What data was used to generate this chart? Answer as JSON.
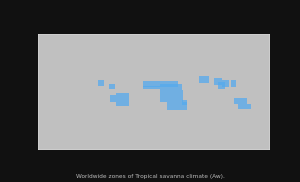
{
  "background_color": "#111111",
  "ocean_color": "#111111",
  "land_color": "#c0c0c0",
  "border_color": "#ffffff",
  "highlight_color": "#55aaee",
  "legend_bar_bg": "#444444",
  "legend_square_color": "#5599ee",
  "caption": "Worldwide zones of Tropical savanna climate (Aw).",
  "caption_color": "#bbbbbb",
  "caption_fontsize": 4.2,
  "figsize": [
    3.0,
    1.82
  ],
  "dpi": 100,
  "highlight_regions": [
    {
      "lon0": -17,
      "lon1": 38,
      "lat0": 8,
      "lat1": 17
    },
    {
      "lon0": -17,
      "lon1": 10,
      "lat0": 4,
      "lat1": 9
    },
    {
      "lon0": 10,
      "lon1": 43,
      "lat0": 3,
      "lat1": 12
    },
    {
      "lon0": 10,
      "lon1": 45,
      "lat0": -15,
      "lat1": 3
    },
    {
      "lon0": 20,
      "lon1": 52,
      "lat0": -28,
      "lat1": -15
    },
    {
      "lon0": 43,
      "lon1": 51,
      "lat0": -20,
      "lat1": -12
    },
    {
      "lon0": -58,
      "lon1": -38,
      "lat0": -22,
      "lat1": -2
    },
    {
      "lon0": -68,
      "lon1": -58,
      "lat0": -16,
      "lat1": -5
    },
    {
      "lon0": -70,
      "lon1": -60,
      "lat0": 5,
      "lat1": 12
    },
    {
      "lon0": -87,
      "lon1": -77,
      "lat0": 9,
      "lat1": 18
    },
    {
      "lon0": 70,
      "lon1": 85,
      "lat0": 14,
      "lat1": 24
    },
    {
      "lon0": 94,
      "lon1": 105,
      "lat0": 10,
      "lat1": 22
    },
    {
      "lon0": 100,
      "lon1": 110,
      "lat0": 5,
      "lat1": 15
    },
    {
      "lon0": 105,
      "lon1": 117,
      "lat0": 8,
      "lat1": 18
    },
    {
      "lon0": 120,
      "lon1": 127,
      "lat0": 8,
      "lat1": 18
    },
    {
      "lon0": 124,
      "lon1": 145,
      "lat0": -18,
      "lat1": -10
    },
    {
      "lon0": 130,
      "lon1": 151,
      "lat0": -26,
      "lat1": -18
    }
  ]
}
